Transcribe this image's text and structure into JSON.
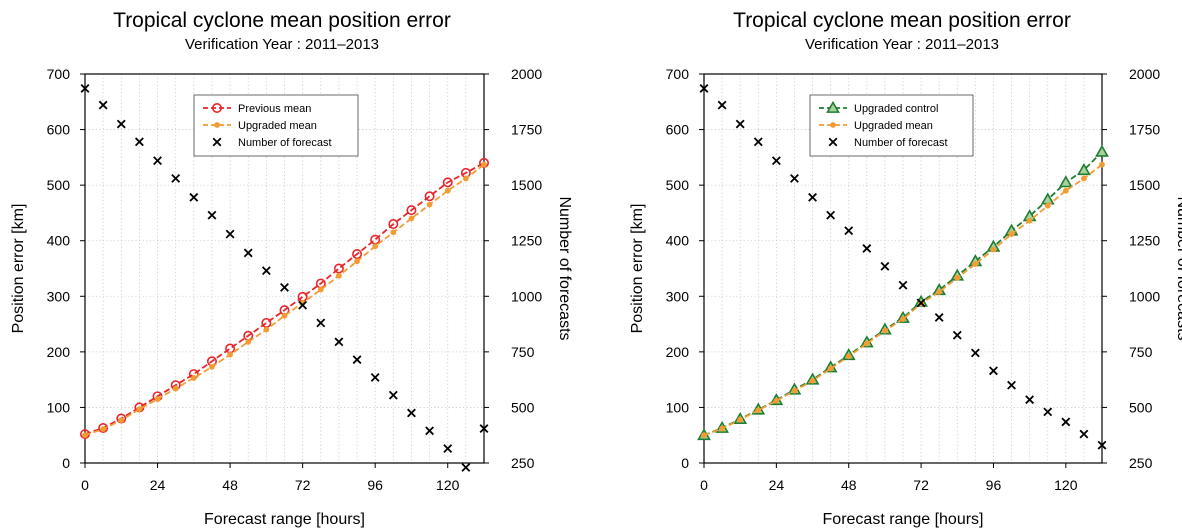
{
  "chart_data": [
    {
      "type": "line",
      "title": "Tropical cyclone mean position error",
      "subtitle": "Verification Year : 2011–2013",
      "xlabel": "Forecast range [hours]",
      "ylabel": "Position error [km]",
      "y2label": "Number of forecasts",
      "xlim": [
        0,
        132
      ],
      "ylim": [
        0,
        700
      ],
      "y2lim": [
        250,
        2000
      ],
      "xticks": [
        "0",
        "24",
        "48",
        "72",
        "96",
        "120"
      ],
      "yticks": [
        "0",
        "100",
        "200",
        "300",
        "400",
        "500",
        "600",
        "700"
      ],
      "y2ticks": [
        "250",
        "500",
        "750",
        "1000",
        "1250",
        "1500",
        "1750",
        "2000"
      ],
      "grid": true,
      "legend_position": "top-center",
      "x": [
        0,
        6,
        12,
        18,
        24,
        30,
        36,
        42,
        48,
        54,
        60,
        66,
        72,
        78,
        84,
        90,
        96,
        102,
        108,
        114,
        120,
        126,
        132
      ],
      "series": [
        {
          "name": "Previous mean",
          "axis": "left",
          "color": "#e8252a",
          "marker": "open-circle",
          "line": "dashed",
          "values": [
            52,
            63,
            80,
            100,
            120,
            140,
            160,
            183,
            206,
            229,
            252,
            275,
            299,
            323,
            350,
            376,
            402,
            430,
            455,
            480,
            505,
            522,
            540
          ]
        },
        {
          "name": "Upgraded mean",
          "axis": "left",
          "color": "#f39c33",
          "marker": "dot",
          "line": "dashed",
          "values": [
            50,
            61,
            77,
            97,
            115,
            134,
            153,
            173,
            195,
            218,
            240,
            265,
            288,
            312,
            337,
            363,
            390,
            415,
            440,
            465,
            490,
            512,
            537
          ]
        },
        {
          "name": "Number of forecast",
          "axis": "right",
          "color": "#000000",
          "marker": "x",
          "line": "none",
          "values": [
            1935,
            1860,
            1775,
            1695,
            1610,
            1530,
            1445,
            1365,
            1280,
            1195,
            1115,
            1040,
            960,
            880,
            795,
            715,
            635,
            555,
            475,
            395,
            315,
            230,
            405
          ]
        }
      ]
    },
    {
      "type": "line",
      "title": "Tropical cyclone mean position error",
      "subtitle": "Verification Year : 2011–2013",
      "xlabel": "Forecast range [hours]",
      "ylabel": "Position error [km]",
      "y2label": "Number of forecasts",
      "xlim": [
        0,
        132
      ],
      "ylim": [
        0,
        700
      ],
      "y2lim": [
        250,
        2000
      ],
      "xticks": [
        "0",
        "24",
        "48",
        "72",
        "96",
        "120"
      ],
      "yticks": [
        "0",
        "100",
        "200",
        "300",
        "400",
        "500",
        "600",
        "700"
      ],
      "y2ticks": [
        "250",
        "500",
        "750",
        "1000",
        "1250",
        "1500",
        "1750",
        "2000"
      ],
      "grid": true,
      "legend_position": "top-center",
      "x": [
        0,
        6,
        12,
        18,
        24,
        30,
        36,
        42,
        48,
        54,
        60,
        66,
        72,
        78,
        84,
        90,
        96,
        102,
        108,
        114,
        120,
        126,
        132
      ],
      "series": [
        {
          "name": "Upgraded control",
          "axis": "left",
          "color": "#1e7d32",
          "marker": "triangle",
          "line": "dashed",
          "values": [
            50,
            63,
            79,
            96,
            113,
            132,
            150,
            172,
            194,
            217,
            240,
            261,
            290,
            311,
            337,
            363,
            389,
            418,
            444,
            474,
            505,
            527,
            560
          ]
        },
        {
          "name": "Upgraded mean",
          "axis": "left",
          "color": "#f39c33",
          "marker": "dot",
          "line": "dashed",
          "values": [
            50,
            62,
            78,
            95,
            112,
            130,
            148,
            170,
            192,
            215,
            238,
            259,
            287,
            308,
            333,
            358,
            384,
            412,
            436,
            463,
            490,
            512,
            537
          ]
        },
        {
          "name": "Number of forecast",
          "axis": "right",
          "color": "#000000",
          "marker": "x",
          "line": "none",
          "values": [
            1935,
            1860,
            1775,
            1695,
            1610,
            1530,
            1445,
            1365,
            1295,
            1215,
            1135,
            1050,
            970,
            905,
            825,
            745,
            665,
            600,
            535,
            480,
            435,
            380,
            330
          ]
        }
      ]
    }
  ]
}
